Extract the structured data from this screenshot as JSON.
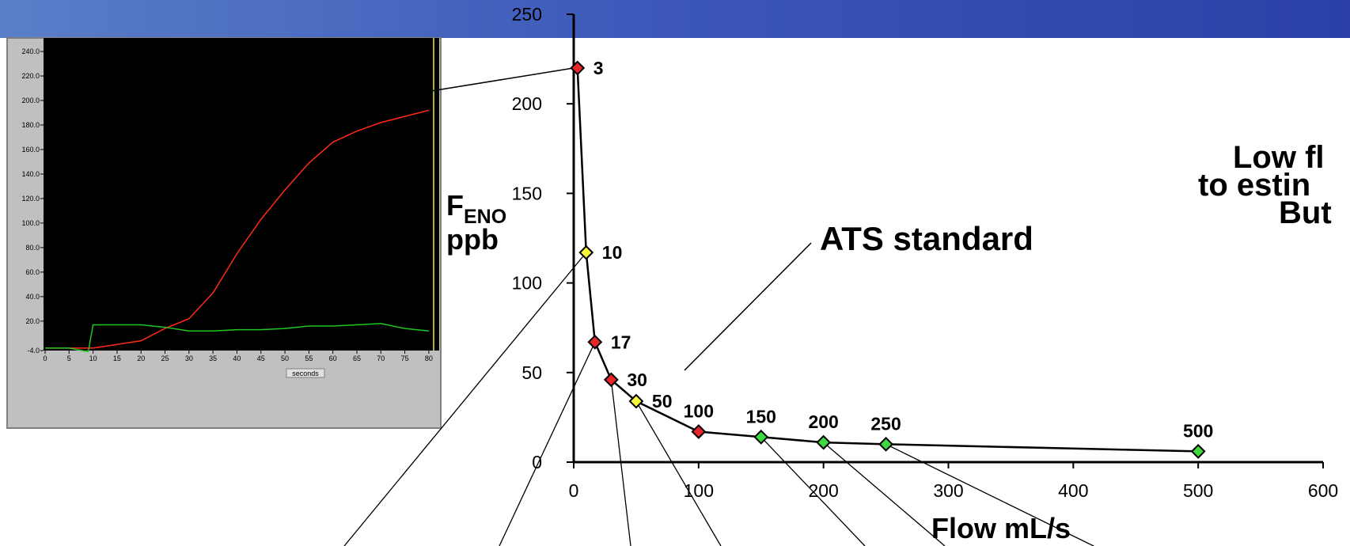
{
  "chart_data": [
    {
      "type": "line",
      "x": [
        3,
        10,
        17,
        30,
        50,
        100,
        150,
        200,
        250,
        500
      ],
      "series": [
        {
          "color": "#000000",
          "values": [
            220,
            117,
            67,
            46,
            34,
            17,
            14,
            11,
            10,
            6
          ],
          "marker_colors": [
            "#e8262a",
            "#f5f53a",
            "#e8262a",
            "#e8262a",
            "#f5f53a",
            "#e8262a",
            "#3fd83f",
            "#3fd83f",
            "#3fd83f",
            "#3fd83f"
          ]
        }
      ],
      "xlim": [
        0,
        600
      ],
      "ylim": [
        0,
        250
      ],
      "xticks": [
        0,
        100,
        200,
        300,
        400,
        500,
        600
      ],
      "yticks": [
        0,
        50,
        100,
        150,
        200,
        250
      ],
      "x_label": "Flow mL/s",
      "y_label": {
        "symbol": "F",
        "subscript": "ENO",
        "unit": "ppb"
      },
      "annotation": "ATS standard",
      "side_text": [
        "Low fl",
        "to estin",
        "But"
      ]
    },
    {
      "type": "line",
      "x": [
        0,
        5,
        9,
        10,
        15,
        20,
        25,
        30,
        35,
        40,
        45,
        50,
        55,
        60,
        65,
        70,
        75,
        80
      ],
      "series": [
        {
          "color": "#ff2a1a",
          "values": [
            -2,
            -2,
            -2,
            -2,
            1,
            4,
            14,
            22,
            43,
            75,
            103,
            127,
            149,
            166,
            175,
            182,
            187,
            192
          ]
        },
        {
          "color": "#1fc81f",
          "values": [
            -2,
            -2,
            -5,
            17,
            17,
            17,
            15,
            12,
            12,
            13,
            13,
            14,
            16,
            16,
            17,
            18,
            14,
            12
          ]
        }
      ],
      "xlim": [
        0,
        82
      ],
      "ylim": [
        -4,
        251
      ],
      "xticks": [
        0,
        5,
        10,
        15,
        20,
        25,
        30,
        35,
        40,
        45,
        50,
        55,
        60,
        65,
        70,
        75,
        80
      ],
      "yticks": [
        {
          "value": -4,
          "label": "-4.0"
        },
        {
          "value": 20,
          "label": "20.0"
        },
        {
          "value": 40,
          "label": "40.0"
        },
        {
          "value": 60,
          "label": "60.0"
        },
        {
          "value": 80,
          "label": "80.0"
        },
        {
          "value": 100,
          "label": "100.0"
        },
        {
          "value": 120,
          "label": "120.0"
        },
        {
          "value": 140,
          "label": "140.0"
        },
        {
          "value": 160,
          "label": "160.0"
        },
        {
          "value": 180,
          "label": "180.0"
        },
        {
          "value": 200,
          "label": "200.0"
        },
        {
          "value": 220,
          "label": "220.0"
        },
        {
          "value": 240,
          "label": "240.0"
        }
      ],
      "x_label": "seconds"
    }
  ]
}
